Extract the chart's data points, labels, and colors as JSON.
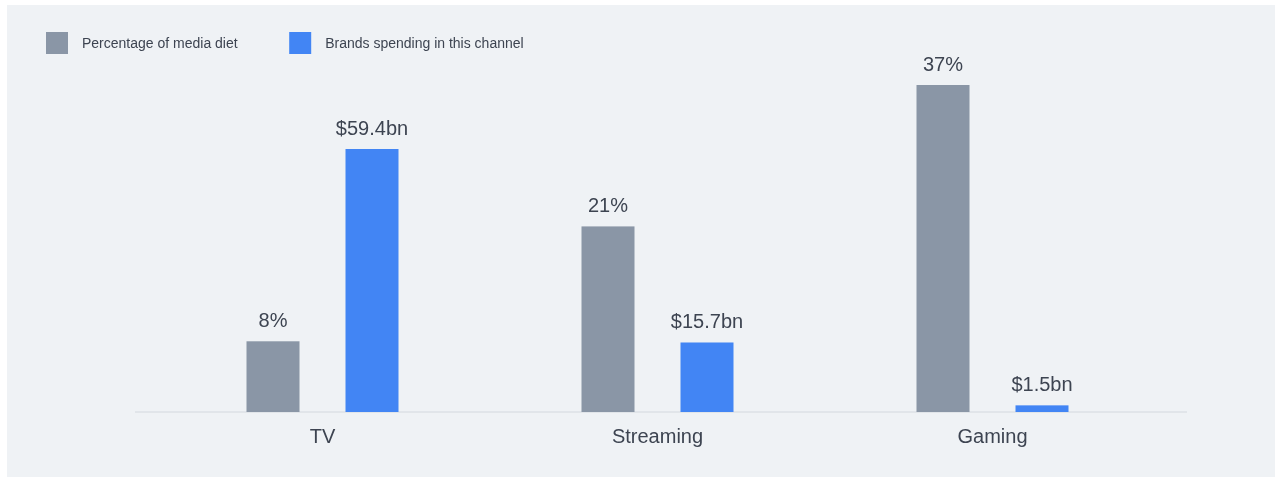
{
  "chart_data": {
    "type": "bar",
    "categories": [
      "TV",
      "Streaming",
      "Gaming"
    ],
    "series": [
      {
        "name": "Percentage of media diet",
        "color": "#8a96a6",
        "values": [
          8,
          21,
          37
        ],
        "value_labels": [
          "8%",
          "21%",
          "37%"
        ]
      },
      {
        "name": "Brands spending in this channel",
        "color": "#4285f4",
        "values": [
          59.4,
          15.7,
          1.5
        ],
        "value_labels": [
          "$59.4bn",
          "$15.7bn",
          "$1.5bn"
        ],
        "axis": "y2"
      }
    ],
    "legend": "top left"
  }
}
